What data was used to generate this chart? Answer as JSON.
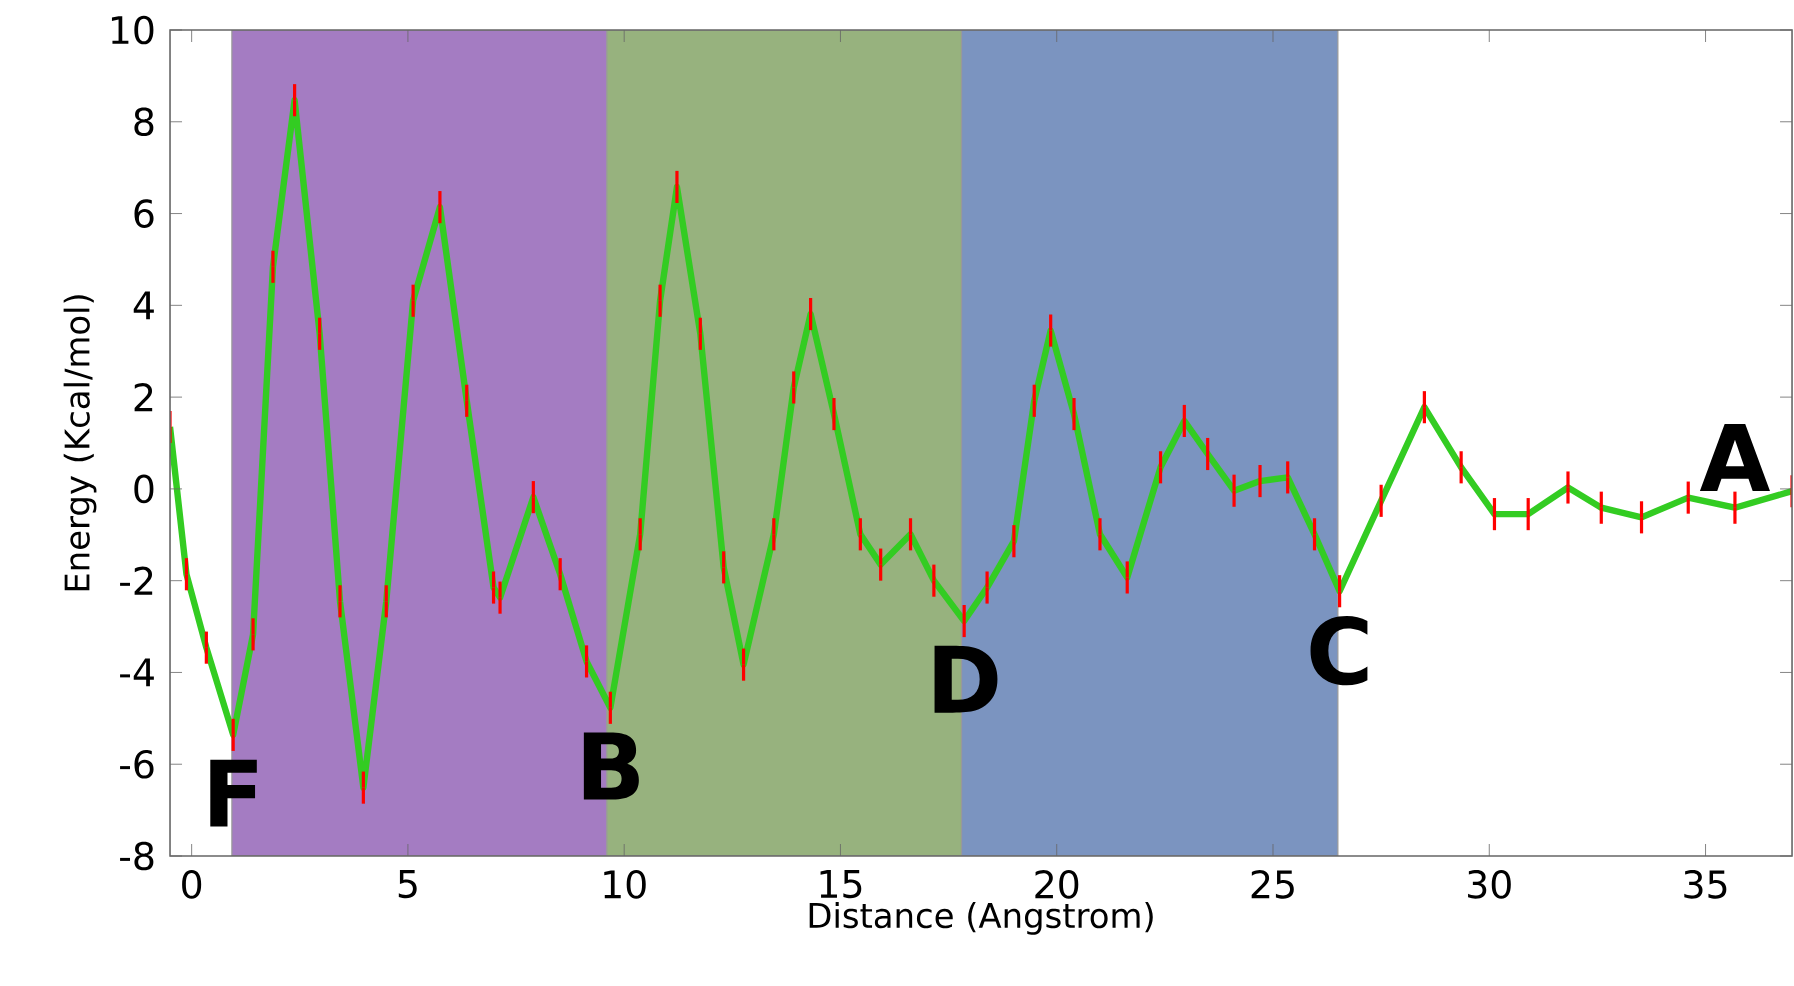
{
  "chart_data": {
    "type": "line",
    "xlabel": "Distance (Angstrom)",
    "ylabel": "Energy (Kcal/mol)",
    "xlim": [
      -0.5,
      37
    ],
    "ylim": [
      -8,
      10
    ],
    "xticks": [
      0,
      5,
      10,
      15,
      20,
      25,
      30,
      35
    ],
    "yticks": [
      -8,
      -6,
      -4,
      -2,
      0,
      2,
      4,
      6,
      8,
      10
    ],
    "marker": "none",
    "line_style": "solid",
    "series": [
      {
        "color": "#33cc22",
        "x": [
          -0.5,
          -0.12,
          0.34,
          0.96,
          1.42,
          1.88,
          2.38,
          2.96,
          3.43,
          3.97,
          4.5,
          5.12,
          5.74,
          6.36,
          6.98,
          7.13,
          7.9,
          8.52,
          9.13,
          9.68,
          10.37,
          10.83,
          11.22,
          11.76,
          12.3,
          12.76,
          13.46,
          13.92,
          14.31,
          14.85,
          15.46,
          15.93,
          16.62,
          17.16,
          17.86,
          18.39,
          19.01,
          19.48,
          19.86,
          20.4,
          21.0,
          21.63,
          22.4,
          22.95,
          23.49,
          24.1,
          24.7,
          25.34,
          25.96,
          26.54,
          27.5,
          28.5,
          29.35,
          30.12,
          30.9,
          31.82,
          32.59,
          33.52,
          34.6,
          35.68,
          37.0
        ],
        "values": [
          1.35,
          -1.86,
          -3.46,
          -5.36,
          -3.17,
          4.84,
          8.47,
          3.38,
          -2.45,
          -6.51,
          -2.45,
          4.1,
          6.14,
          1.92,
          -2.15,
          -2.37,
          -0.18,
          -1.86,
          -3.76,
          -4.77,
          -0.99,
          4.1,
          6.58,
          3.38,
          -1.71,
          -3.83,
          -0.99,
          2.21,
          3.81,
          1.63,
          -0.99,
          -1.65,
          -0.99,
          -2.0,
          -2.88,
          -2.15,
          -1.14,
          1.92,
          3.45,
          1.63,
          -0.99,
          -1.93,
          0.47,
          1.48,
          0.76,
          -0.04,
          0.17,
          0.25,
          -0.99,
          -2.23,
          -0.26,
          1.78,
          0.47,
          -0.55,
          -0.55,
          0.03,
          -0.41,
          -0.62,
          -0.19,
          -0.41,
          -0.05
        ],
        "errors": [
          0.35,
          0.35,
          0.35,
          0.35,
          0.35,
          0.35,
          0.35,
          0.35,
          0.35,
          0.35,
          0.35,
          0.35,
          0.35,
          0.35,
          0.35,
          0.35,
          0.35,
          0.35,
          0.35,
          0.35,
          0.35,
          0.35,
          0.35,
          0.35,
          0.35,
          0.35,
          0.35,
          0.35,
          0.35,
          0.35,
          0.35,
          0.35,
          0.35,
          0.35,
          0.35,
          0.35,
          0.35,
          0.35,
          0.35,
          0.35,
          0.35,
          0.35,
          0.35,
          0.35,
          0.35,
          0.35,
          0.35,
          0.35,
          0.35,
          0.35,
          0.35,
          0.35,
          0.35,
          0.35,
          0.35,
          0.35,
          0.35,
          0.35,
          0.35,
          0.35,
          0.35
        ]
      }
    ],
    "bands": [
      {
        "axis": "x",
        "from": 0.93,
        "to": 9.6,
        "color": "#a47cc2"
      },
      {
        "axis": "x",
        "from": 9.6,
        "to": 17.8,
        "color": "#97b27e"
      },
      {
        "axis": "x",
        "from": 17.8,
        "to": 26.5,
        "color": "#7b94c0"
      }
    ],
    "annotations": [
      {
        "text": "F",
        "x": 0.96,
        "y": -5.36
      },
      {
        "text": "B",
        "x": 9.68,
        "y": -4.77
      },
      {
        "text": "D",
        "x": 17.86,
        "y": -2.88
      },
      {
        "text": "C",
        "x": 26.54,
        "y": -2.23
      },
      {
        "text": "A",
        "x": 35.68,
        "y": -0.41
      }
    ]
  }
}
